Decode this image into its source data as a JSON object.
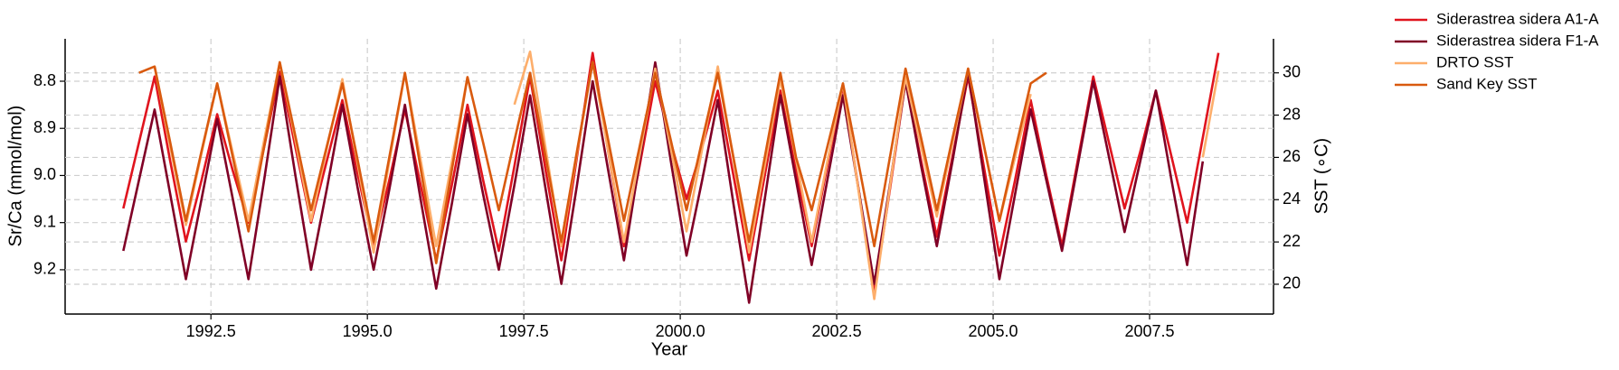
{
  "chart_data": {
    "type": "line",
    "xlabel": "Year",
    "ylabel": "Sr/Ca (mmol/mol)",
    "y2label": "SST (∘C)",
    "grid": true,
    "legend": "outside upper right",
    "x": [
      1991.1,
      1991.35,
      1991.6,
      1991.85,
      1992.1,
      1992.35,
      1992.6,
      1992.85,
      1993.1,
      1993.35,
      1993.6,
      1993.85,
      1994.1,
      1994.35,
      1994.6,
      1994.85,
      1995.1,
      1995.35,
      1995.6,
      1995.85,
      1996.1,
      1996.35,
      1996.6,
      1996.85,
      1997.1,
      1997.35,
      1997.6,
      1997.85,
      1998.1,
      1998.35,
      1998.6,
      1998.85,
      1999.1,
      1999.35,
      1999.6,
      1999.85,
      2000.1,
      2000.35,
      2000.6,
      2000.85,
      2001.1,
      2001.35,
      2001.6,
      2001.85,
      2002.1,
      2002.35,
      2002.6,
      2002.85,
      2003.1,
      2003.35,
      2003.6,
      2003.85,
      2004.1,
      2004.35,
      2004.6,
      2004.85,
      2005.1,
      2005.35,
      2005.6,
      2005.85,
      2006.1,
      2006.35,
      2006.6,
      2006.85,
      2007.1,
      2007.35,
      2007.6,
      2007.85,
      2008.1,
      2008.35,
      2008.6
    ],
    "xlim": [
      1990.17,
      2009.48
    ],
    "xticks": [
      1992.5,
      {
        "value": 1995,
        "label": "1995.0"
      },
      1997.5,
      {
        "value": 2000,
        "label": "2000.0"
      },
      2002.5,
      {
        "value": 2005,
        "label": "2005.0"
      },
      2007.5
    ],
    "ylim": [
      9.294,
      8.71
    ],
    "yticks": [
      8.8,
      8.9,
      {
        "value": 9.0,
        "label": "9.0"
      },
      9.1,
      9.2
    ],
    "y2lim": [
      18.59,
      31.61
    ],
    "y2ticks": [
      20,
      22,
      24,
      26,
      28,
      30
    ],
    "series": [
      {
        "name": "Siderastrea sidera A1-A",
        "color": "#e0141e",
        "axis": "y",
        "values": [
          9.07,
          8.93,
          8.79,
          8.97,
          9.14,
          9.01,
          8.87,
          8.99,
          9.1,
          8.94,
          8.78,
          8.94,
          9.1,
          8.97,
          8.84,
          9.0,
          9.15,
          9.01,
          8.86,
          9.02,
          9.18,
          9.02,
          8.85,
          9.01,
          9.16,
          8.98,
          8.79,
          8.99,
          9.18,
          8.96,
          8.74,
          8.95,
          9.15,
          8.98,
          8.8,
          8.93,
          9.05,
          8.94,
          8.82,
          9.0,
          9.18,
          9.0,
          8.82,
          8.99,
          9.15,
          8.98,
          8.81,
          9.03,
          9.25,
          9.03,
          8.8,
          8.97,
          9.13,
          8.96,
          8.79,
          8.98,
          9.17,
          9.01,
          8.84,
          9.0,
          9.15,
          8.97,
          8.79,
          8.93,
          9.07,
          8.95,
          8.82,
          8.96,
          9.1,
          8.92,
          8.74
        ]
      },
      {
        "name": "Siderastrea sidera F1-A",
        "color": "#800026",
        "axis": "y",
        "values": [
          9.16,
          9.01,
          8.86,
          9.04,
          9.22,
          9.05,
          8.88,
          9.05,
          9.22,
          9.01,
          8.79,
          9.0,
          9.2,
          9.03,
          8.85,
          9.03,
          9.2,
          9.03,
          8.85,
          9.05,
          9.24,
          9.06,
          8.87,
          9.04,
          9.2,
          9.02,
          8.83,
          9.03,
          9.23,
          9.02,
          8.8,
          8.99,
          9.18,
          8.97,
          8.76,
          8.97,
          9.17,
          9.01,
          8.84,
          9.06,
          9.27,
          9.05,
          8.83,
          9.01,
          9.19,
          9.01,
          8.83,
          9.03,
          9.23,
          9.02,
          8.8,
          8.98,
          9.15,
          8.97,
          8.78,
          9.0,
          9.22,
          9.04,
          8.86,
          9.01,
          9.16,
          8.98,
          8.8,
          8.96,
          9.12,
          8.97,
          8.82,
          9.01,
          9.19,
          8.97,
          null
        ]
      },
      {
        "name": "DRTO SST",
        "color": "#fdae6b",
        "axis": "y2",
        "values": [
          null,
          null,
          30.3,
          26.5,
          22.8,
          26.2,
          29.5,
          26.2,
          23.0,
          26.8,
          30.5,
          26.8,
          23.0,
          26.4,
          29.7,
          25.6,
          21.5,
          25.8,
          30.0,
          25.9,
          21.8,
          25.8,
          29.8,
          null,
          null,
          28.5,
          31.0,
          26.4,
          21.8,
          26.2,
          30.5,
          26.3,
          22.0,
          26.1,
          30.2,
          26.4,
          22.5,
          26.4,
          30.3,
          25.9,
          21.5,
          25.6,
          29.7,
          25.9,
          22.0,
          25.8,
          29.5,
          24.4,
          19.3,
          24.6,
          29.8,
          26.5,
          23.2,
          26.7,
          30.2,
          26.6,
          23.0,
          26.0,
          29.0,
          null,
          null,
          null,
          null,
          null,
          null,
          null,
          null,
          null,
          null,
          26.0,
          30.1
        ]
      },
      {
        "name": "Sand Key SST",
        "color": "#d95a0e",
        "axis": "y2",
        "values": [
          null,
          30.0,
          30.3,
          26.7,
          23.0,
          26.3,
          29.5,
          26.0,
          22.5,
          26.5,
          30.5,
          27.0,
          23.5,
          26.5,
          29.5,
          25.8,
          22.0,
          26.0,
          30.0,
          25.5,
          21.0,
          25.4,
          29.8,
          26.7,
          23.5,
          26.8,
          30.0,
          26.0,
          22.0,
          26.3,
          30.5,
          26.8,
          23.0,
          26.5,
          30.0,
          26.8,
          23.5,
          26.8,
          30.0,
          26.0,
          22.0,
          26.0,
          30.0,
          26.0,
          23.5,
          26.5,
          29.5,
          25.7,
          21.8,
          26.0,
          30.2,
          26.9,
          23.5,
          26.9,
          30.2,
          26.6,
          23.0,
          26.3,
          29.5,
          30.0,
          null,
          null,
          null,
          null,
          null,
          null,
          null,
          null,
          null,
          null,
          null
        ]
      }
    ]
  }
}
